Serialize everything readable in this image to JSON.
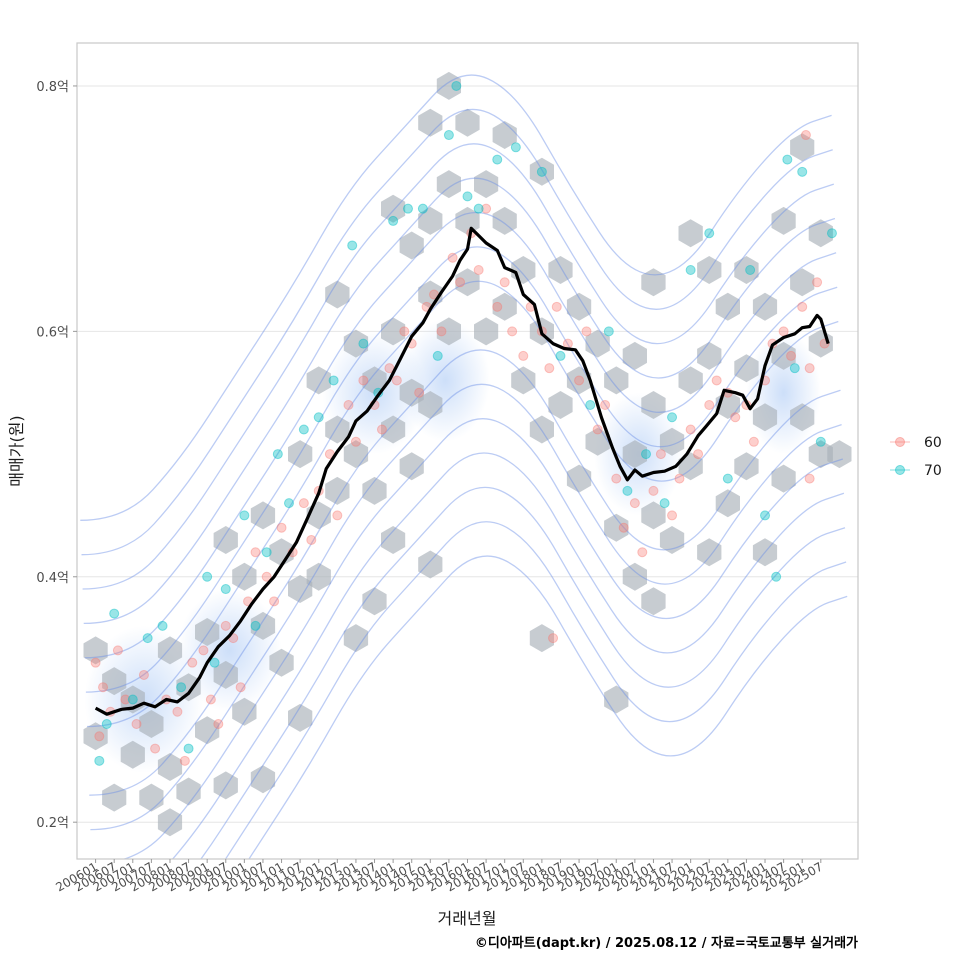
{
  "chart_data": {
    "type": "scatter",
    "xlabel": "거래년월",
    "ylabel": "매매가(원)",
    "caption": "©디아파트(dapt.kr) / 2025.08.12 / 자료=국토교통부 실거래가",
    "x_ticks": [
      "200601",
      "200607",
      "200701",
      "200707",
      "200801",
      "200807",
      "200901",
      "200907",
      "201001",
      "201007",
      "201101",
      "201107",
      "201201",
      "201207",
      "201301",
      "201307",
      "201401",
      "201407",
      "201501",
      "201507",
      "201601",
      "201607",
      "201701",
      "201707",
      "201801",
      "201807",
      "201901",
      "201907",
      "202001",
      "202007",
      "202101",
      "202107",
      "202201",
      "202207",
      "202301",
      "202307",
      "202401",
      "202407",
      "202501",
      "202507"
    ],
    "y_ticks": [
      {
        "value": 0.2,
        "label": "0.2억"
      },
      {
        "value": 0.4,
        "label": "0.4억"
      },
      {
        "value": 0.6,
        "label": "0.6억"
      },
      {
        "value": 0.8,
        "label": "0.8억"
      }
    ],
    "ylim": [
      0.17,
      0.835
    ],
    "xlim": [
      2005.5,
      2026.5
    ],
    "legend": {
      "position": "right",
      "entries": [
        {
          "label": "60",
          "color": "#F8766D"
        },
        {
          "label": "70",
          "color": "#00BFC4"
        }
      ]
    },
    "trend_line": {
      "name": "moving average",
      "color": "#000000",
      "points": [
        [
          2006.0,
          0.293
        ],
        [
          2006.3,
          0.288
        ],
        [
          2006.7,
          0.292
        ],
        [
          2007.0,
          0.293
        ],
        [
          2007.3,
          0.297
        ],
        [
          2007.6,
          0.294
        ],
        [
          2007.9,
          0.3
        ],
        [
          2008.2,
          0.298
        ],
        [
          2008.5,
          0.305
        ],
        [
          2008.8,
          0.318
        ],
        [
          2009.0,
          0.33
        ],
        [
          2009.3,
          0.343
        ],
        [
          2009.6,
          0.352
        ],
        [
          2009.9,
          0.364
        ],
        [
          2010.2,
          0.378
        ],
        [
          2010.5,
          0.39
        ],
        [
          2010.8,
          0.4
        ],
        [
          2011.1,
          0.414
        ],
        [
          2011.4,
          0.428
        ],
        [
          2011.7,
          0.448
        ],
        [
          2012.0,
          0.468
        ],
        [
          2012.2,
          0.488
        ],
        [
          2012.5,
          0.502
        ],
        [
          2012.8,
          0.514
        ],
        [
          2013.0,
          0.527
        ],
        [
          2013.3,
          0.535
        ],
        [
          2013.6,
          0.548
        ],
        [
          2013.9,
          0.56
        ],
        [
          2014.2,
          0.578
        ],
        [
          2014.5,
          0.596
        ],
        [
          2014.8,
          0.607
        ],
        [
          2015.0,
          0.618
        ],
        [
          2015.3,
          0.632
        ],
        [
          2015.6,
          0.645
        ],
        [
          2015.8,
          0.658
        ],
        [
          2016.0,
          0.667
        ],
        [
          2016.1,
          0.684
        ],
        [
          2016.3,
          0.678
        ],
        [
          2016.5,
          0.672
        ],
        [
          2016.8,
          0.666
        ],
        [
          2017.0,
          0.652
        ],
        [
          2017.3,
          0.648
        ],
        [
          2017.5,
          0.63
        ],
        [
          2017.8,
          0.622
        ],
        [
          2018.0,
          0.598
        ],
        [
          2018.3,
          0.59
        ],
        [
          2018.6,
          0.586
        ],
        [
          2018.9,
          0.585
        ],
        [
          2019.1,
          0.576
        ],
        [
          2019.3,
          0.56
        ],
        [
          2019.6,
          0.53
        ],
        [
          2019.9,
          0.505
        ],
        [
          2020.1,
          0.49
        ],
        [
          2020.3,
          0.479
        ],
        [
          2020.5,
          0.487
        ],
        [
          2020.7,
          0.482
        ],
        [
          2021.0,
          0.485
        ],
        [
          2021.3,
          0.486
        ],
        [
          2021.6,
          0.49
        ],
        [
          2021.9,
          0.5
        ],
        [
          2022.2,
          0.515
        ],
        [
          2022.4,
          0.522
        ],
        [
          2022.7,
          0.533
        ],
        [
          2022.9,
          0.552
        ],
        [
          2023.2,
          0.55
        ],
        [
          2023.4,
          0.548
        ],
        [
          2023.6,
          0.537
        ],
        [
          2023.8,
          0.545
        ],
        [
          2024.0,
          0.572
        ],
        [
          2024.2,
          0.589
        ],
        [
          2024.5,
          0.595
        ],
        [
          2024.8,
          0.598
        ],
        [
          2025.0,
          0.603
        ],
        [
          2025.2,
          0.604
        ],
        [
          2025.4,
          0.613
        ],
        [
          2025.5,
          0.61
        ],
        [
          2025.7,
          0.59
        ]
      ]
    },
    "hex_cells": [
      [
        2006.0,
        0.34
      ],
      [
        2006.0,
        0.27
      ],
      [
        2006.5,
        0.315
      ],
      [
        2006.5,
        0.22
      ],
      [
        2007.0,
        0.3
      ],
      [
        2007.0,
        0.255
      ],
      [
        2007.5,
        0.28
      ],
      [
        2007.5,
        0.22
      ],
      [
        2008.0,
        0.34
      ],
      [
        2008.0,
        0.245
      ],
      [
        2008.0,
        0.2
      ],
      [
        2008.5,
        0.31
      ],
      [
        2008.5,
        0.225
      ],
      [
        2009.0,
        0.355
      ],
      [
        2009.0,
        0.275
      ],
      [
        2009.5,
        0.43
      ],
      [
        2009.5,
        0.32
      ],
      [
        2009.5,
        0.23
      ],
      [
        2010.0,
        0.4
      ],
      [
        2010.0,
        0.29
      ],
      [
        2010.5,
        0.45
      ],
      [
        2010.5,
        0.36
      ],
      [
        2010.5,
        0.235
      ],
      [
        2011.0,
        0.42
      ],
      [
        2011.0,
        0.33
      ],
      [
        2011.5,
        0.5
      ],
      [
        2011.5,
        0.39
      ],
      [
        2011.5,
        0.285
      ],
      [
        2012.0,
        0.56
      ],
      [
        2012.0,
        0.45
      ],
      [
        2012.0,
        0.4
      ],
      [
        2012.5,
        0.63
      ],
      [
        2012.5,
        0.52
      ],
      [
        2012.5,
        0.47
      ],
      [
        2013.0,
        0.59
      ],
      [
        2013.0,
        0.5
      ],
      [
        2013.0,
        0.35
      ],
      [
        2013.5,
        0.56
      ],
      [
        2013.5,
        0.47
      ],
      [
        2013.5,
        0.38
      ],
      [
        2014.0,
        0.7
      ],
      [
        2014.0,
        0.6
      ],
      [
        2014.0,
        0.52
      ],
      [
        2014.0,
        0.43
      ],
      [
        2014.5,
        0.67
      ],
      [
        2014.5,
        0.55
      ],
      [
        2014.5,
        0.49
      ],
      [
        2015.0,
        0.77
      ],
      [
        2015.0,
        0.69
      ],
      [
        2015.0,
        0.63
      ],
      [
        2015.0,
        0.54
      ],
      [
        2015.0,
        0.41
      ],
      [
        2015.5,
        0.8
      ],
      [
        2015.5,
        0.72
      ],
      [
        2015.5,
        0.6
      ],
      [
        2016.0,
        0.77
      ],
      [
        2016.0,
        0.69
      ],
      [
        2016.0,
        0.64
      ],
      [
        2016.5,
        0.72
      ],
      [
        2016.5,
        0.6
      ],
      [
        2017.0,
        0.76
      ],
      [
        2017.0,
        0.69
      ],
      [
        2017.0,
        0.62
      ],
      [
        2017.5,
        0.65
      ],
      [
        2017.5,
        0.56
      ],
      [
        2018.0,
        0.73
      ],
      [
        2018.0,
        0.6
      ],
      [
        2018.0,
        0.52
      ],
      [
        2018.0,
        0.35
      ],
      [
        2018.5,
        0.65
      ],
      [
        2018.5,
        0.54
      ],
      [
        2019.0,
        0.62
      ],
      [
        2019.0,
        0.56
      ],
      [
        2019.0,
        0.48
      ],
      [
        2019.5,
        0.59
      ],
      [
        2019.5,
        0.51
      ],
      [
        2020.0,
        0.56
      ],
      [
        2020.0,
        0.44
      ],
      [
        2020.0,
        0.3
      ],
      [
        2020.5,
        0.58
      ],
      [
        2020.5,
        0.5
      ],
      [
        2020.5,
        0.4
      ],
      [
        2021.0,
        0.64
      ],
      [
        2021.0,
        0.54
      ],
      [
        2021.0,
        0.45
      ],
      [
        2021.0,
        0.38
      ],
      [
        2021.5,
        0.51
      ],
      [
        2021.5,
        0.43
      ],
      [
        2022.0,
        0.68
      ],
      [
        2022.0,
        0.56
      ],
      [
        2022.0,
        0.49
      ],
      [
        2022.5,
        0.65
      ],
      [
        2022.5,
        0.58
      ],
      [
        2022.5,
        0.42
      ],
      [
        2023.0,
        0.62
      ],
      [
        2023.0,
        0.54
      ],
      [
        2023.0,
        0.46
      ],
      [
        2023.5,
        0.65
      ],
      [
        2023.5,
        0.57
      ],
      [
        2023.5,
        0.49
      ],
      [
        2024.0,
        0.62
      ],
      [
        2024.0,
        0.53
      ],
      [
        2024.0,
        0.42
      ],
      [
        2024.5,
        0.69
      ],
      [
        2024.5,
        0.58
      ],
      [
        2024.5,
        0.48
      ],
      [
        2025.0,
        0.75
      ],
      [
        2025.0,
        0.64
      ],
      [
        2025.0,
        0.53
      ],
      [
        2025.5,
        0.68
      ],
      [
        2025.5,
        0.59
      ],
      [
        2025.5,
        0.5
      ],
      [
        2026.0,
        0.5
      ]
    ],
    "points_60": [
      [
        2006.0,
        0.33
      ],
      [
        2006.1,
        0.27
      ],
      [
        2006.2,
        0.31
      ],
      [
        2006.4,
        0.29
      ],
      [
        2006.6,
        0.34
      ],
      [
        2006.8,
        0.3
      ],
      [
        2007.1,
        0.28
      ],
      [
        2007.3,
        0.32
      ],
      [
        2007.6,
        0.26
      ],
      [
        2007.9,
        0.3
      ],
      [
        2008.2,
        0.29
      ],
      [
        2008.4,
        0.25
      ],
      [
        2008.6,
        0.33
      ],
      [
        2008.9,
        0.34
      ],
      [
        2009.1,
        0.3
      ],
      [
        2009.3,
        0.28
      ],
      [
        2009.5,
        0.36
      ],
      [
        2009.7,
        0.35
      ],
      [
        2009.9,
        0.31
      ],
      [
        2010.1,
        0.38
      ],
      [
        2010.3,
        0.42
      ],
      [
        2010.6,
        0.4
      ],
      [
        2010.8,
        0.38
      ],
      [
        2011.0,
        0.44
      ],
      [
        2011.3,
        0.42
      ],
      [
        2011.6,
        0.46
      ],
      [
        2011.8,
        0.43
      ],
      [
        2012.0,
        0.47
      ],
      [
        2012.3,
        0.5
      ],
      [
        2012.5,
        0.45
      ],
      [
        2012.8,
        0.54
      ],
      [
        2013.0,
        0.51
      ],
      [
        2013.2,
        0.56
      ],
      [
        2013.5,
        0.54
      ],
      [
        2013.7,
        0.52
      ],
      [
        2013.9,
        0.57
      ],
      [
        2014.1,
        0.56
      ],
      [
        2014.3,
        0.6
      ],
      [
        2014.5,
        0.59
      ],
      [
        2014.7,
        0.55
      ],
      [
        2014.9,
        0.62
      ],
      [
        2015.1,
        0.63
      ],
      [
        2015.3,
        0.6
      ],
      [
        2015.6,
        0.66
      ],
      [
        2015.8,
        0.64
      ],
      [
        2016.1,
        0.68
      ],
      [
        2016.3,
        0.65
      ],
      [
        2016.5,
        0.7
      ],
      [
        2016.8,
        0.62
      ],
      [
        2017.0,
        0.64
      ],
      [
        2017.2,
        0.6
      ],
      [
        2017.5,
        0.58
      ],
      [
        2017.7,
        0.62
      ],
      [
        2018.0,
        0.6
      ],
      [
        2018.2,
        0.57
      ],
      [
        2018.4,
        0.62
      ],
      [
        2018.7,
        0.59
      ],
      [
        2019.0,
        0.56
      ],
      [
        2019.2,
        0.6
      ],
      [
        2019.5,
        0.52
      ],
      [
        2019.7,
        0.54
      ],
      [
        2020.0,
        0.48
      ],
      [
        2020.2,
        0.44
      ],
      [
        2020.5,
        0.46
      ],
      [
        2020.7,
        0.42
      ],
      [
        2021.0,
        0.47
      ],
      [
        2021.2,
        0.5
      ],
      [
        2021.5,
        0.45
      ],
      [
        2021.7,
        0.48
      ],
      [
        2022.0,
        0.52
      ],
      [
        2022.2,
        0.5
      ],
      [
        2022.5,
        0.54
      ],
      [
        2022.7,
        0.56
      ],
      [
        2023.0,
        0.55
      ],
      [
        2023.2,
        0.53
      ],
      [
        2023.5,
        0.54
      ],
      [
        2023.7,
        0.51
      ],
      [
        2024.0,
        0.56
      ],
      [
        2024.2,
        0.59
      ],
      [
        2024.5,
        0.6
      ],
      [
        2024.7,
        0.58
      ],
      [
        2025.0,
        0.62
      ],
      [
        2025.2,
        0.57
      ],
      [
        2025.4,
        0.64
      ],
      [
        2025.6,
        0.59
      ],
      [
        2018.3,
        0.35
      ],
      [
        2025.1,
        0.76
      ],
      [
        2025.2,
        0.48
      ]
    ],
    "points_70": [
      [
        2006.1,
        0.25
      ],
      [
        2006.3,
        0.28
      ],
      [
        2006.5,
        0.37
      ],
      [
        2007.0,
        0.3
      ],
      [
        2007.4,
        0.35
      ],
      [
        2007.8,
        0.36
      ],
      [
        2008.3,
        0.31
      ],
      [
        2008.5,
        0.26
      ],
      [
        2009.0,
        0.4
      ],
      [
        2009.2,
        0.33
      ],
      [
        2009.5,
        0.39
      ],
      [
        2010.0,
        0.45
      ],
      [
        2010.3,
        0.36
      ],
      [
        2010.6,
        0.42
      ],
      [
        2010.9,
        0.5
      ],
      [
        2011.2,
        0.46
      ],
      [
        2011.6,
        0.52
      ],
      [
        2012.0,
        0.53
      ],
      [
        2012.4,
        0.56
      ],
      [
        2012.9,
        0.67
      ],
      [
        2013.2,
        0.59
      ],
      [
        2013.6,
        0.55
      ],
      [
        2014.0,
        0.69
      ],
      [
        2014.4,
        0.7
      ],
      [
        2014.8,
        0.7
      ],
      [
        2015.2,
        0.58
      ],
      [
        2015.5,
        0.76
      ],
      [
        2015.7,
        0.8
      ],
      [
        2016.0,
        0.71
      ],
      [
        2016.3,
        0.7
      ],
      [
        2016.8,
        0.74
      ],
      [
        2017.3,
        0.75
      ],
      [
        2018.0,
        0.73
      ],
      [
        2018.5,
        0.58
      ],
      [
        2019.3,
        0.54
      ],
      [
        2019.8,
        0.6
      ],
      [
        2020.3,
        0.47
      ],
      [
        2020.8,
        0.5
      ],
      [
        2021.3,
        0.46
      ],
      [
        2021.5,
        0.53
      ],
      [
        2022.0,
        0.65
      ],
      [
        2022.5,
        0.68
      ],
      [
        2023.0,
        0.48
      ],
      [
        2023.6,
        0.65
      ],
      [
        2024.0,
        0.45
      ],
      [
        2024.3,
        0.4
      ],
      [
        2024.6,
        0.74
      ],
      [
        2025.0,
        0.73
      ],
      [
        2025.5,
        0.51
      ],
      [
        2025.8,
        0.68
      ],
      [
        2024.8,
        0.57
      ]
    ],
    "contours": {
      "color": "#6B8FE6"
    }
  }
}
